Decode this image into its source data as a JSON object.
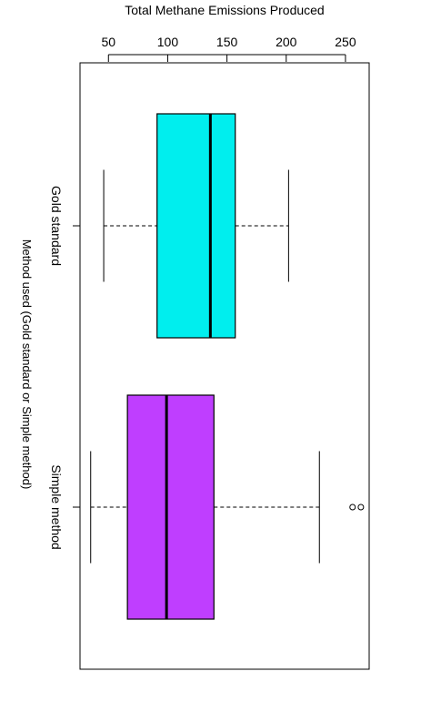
{
  "chart_data": {
    "type": "boxplot",
    "orientation": "horizontal",
    "title": "",
    "xlabel": "Total Methane Emissions Produced",
    "ylabel": "Method used (Gold standard or Simple method)",
    "xlim": [
      26,
      270
    ],
    "x_ticks": [
      50,
      100,
      150,
      200,
      250
    ],
    "x_tick_labels": [
      "50",
      "100",
      "150",
      "200",
      "250"
    ],
    "x_axis_position": "top",
    "grid": false,
    "legend": "none",
    "categories": [
      "Gold standard",
      "Simple method"
    ],
    "boxes": [
      {
        "category": "Gold standard",
        "min": 46,
        "q1": 91,
        "median": 136,
        "q3": 157,
        "max": 202,
        "outliers": [],
        "color": "#00EEEE"
      },
      {
        "category": "Simple method",
        "min": 35,
        "q1": 66,
        "median": 99,
        "q3": 139,
        "max": 228,
        "outliers": [
          256,
          263
        ],
        "color": "#BF3EFF"
      }
    ]
  }
}
